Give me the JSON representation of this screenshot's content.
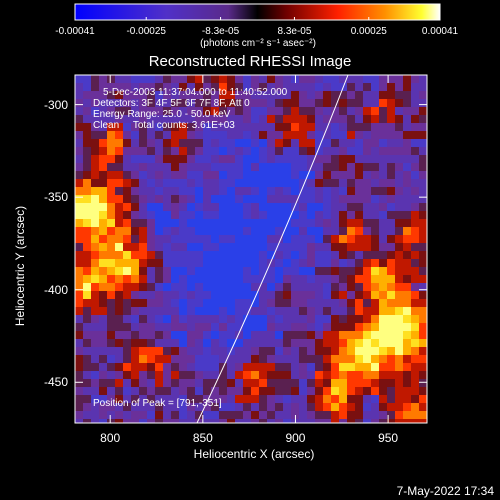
{
  "colorbar": {
    "ticks": [
      "-0.00041",
      "-0.00025",
      "-8.3e-05",
      "8.3e-05",
      "0.00025",
      "0.00041"
    ],
    "tick_values": [
      -0.00041,
      -0.00025,
      -8.3e-05,
      8.3e-05,
      0.00025,
      0.00041
    ],
    "units": "(photons cm⁻² s⁻¹ asec⁻²)",
    "colors": [
      "#0000ff",
      "#4a2fd0",
      "#7a40a8",
      "#000000",
      "#8a0000",
      "#ff2000",
      "#ff8000",
      "#ffff00",
      "#ffffff"
    ]
  },
  "image": {
    "title": "Reconstructed RHESSI Image",
    "info_lines": [
      "5-Dec-2003 11:37:04.000 to 11:40:52.000",
      "Detectors: 3F 4F 5F 6F 7F 8F, Att 0",
      "Energy Range: 25.0 - 50.0 keV",
      "Clean     Total counts: 3.61E+03"
    ],
    "peak_text": "Position of Peak = [791,-351]"
  },
  "axes": {
    "xlabel": "Heliocentric X (arcsec)",
    "ylabel": "Heliocentric Y (arcsec)",
    "x_ticks": [
      "800",
      "850",
      "900",
      "950"
    ],
    "y_ticks": [
      "-300",
      "-350",
      "-400",
      "-450"
    ],
    "x_range": [
      781,
      971
    ],
    "y_range": [
      -472,
      -284
    ],
    "limb_color": "#ffffff"
  },
  "footer": {
    "timestamp": "7-May-2022 17:34"
  }
}
